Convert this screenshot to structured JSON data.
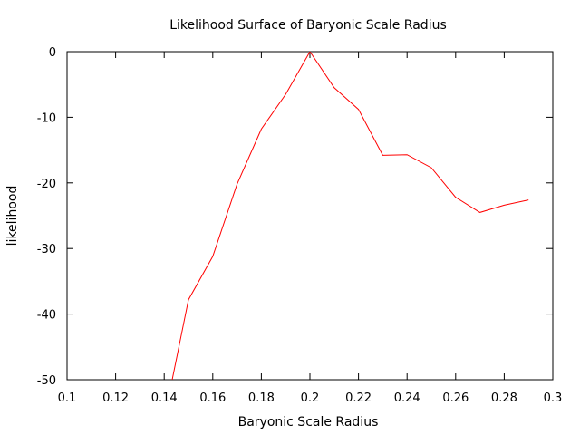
{
  "chart_data": {
    "type": "line",
    "title": "Likelihood Surface of Baryonic Scale Radius",
    "xlabel": "Baryonic Scale Radius",
    "ylabel": "likelihood",
    "xlim": [
      0.1,
      0.3
    ],
    "ylim": [
      -50,
      0
    ],
    "xticks": [
      0.1,
      0.12,
      0.14,
      0.16,
      0.18,
      0.2,
      0.22,
      0.24,
      0.26,
      0.28,
      0.3
    ],
    "xtick_labels": [
      "0.1",
      "0.12",
      "0.14",
      "0.16",
      "0.18",
      "0.2",
      "0.22",
      "0.24",
      "0.26",
      "0.28",
      "0.3"
    ],
    "yticks": [
      0,
      -10,
      -20,
      -30,
      -40,
      -50
    ],
    "ytick_labels": [
      "0",
      "-10",
      "-20",
      "-30",
      "-40",
      "-50"
    ],
    "grid": false,
    "line_color": "#ff0000",
    "series": [
      {
        "x": [
          0.14,
          0.15,
          0.16,
          0.17,
          0.18,
          0.19,
          0.2,
          0.21,
          0.22,
          0.23,
          0.24,
          0.25,
          0.26,
          0.27,
          0.28,
          0.29
        ],
        "y": [
          -56,
          -37.8,
          -31.2,
          -20.2,
          -11.8,
          -6.5,
          0,
          -5.5,
          -8.8,
          -15.8,
          -15.7,
          -17.7,
          -22.2,
          -24.5,
          -23.4,
          -22.6
        ]
      }
    ]
  }
}
